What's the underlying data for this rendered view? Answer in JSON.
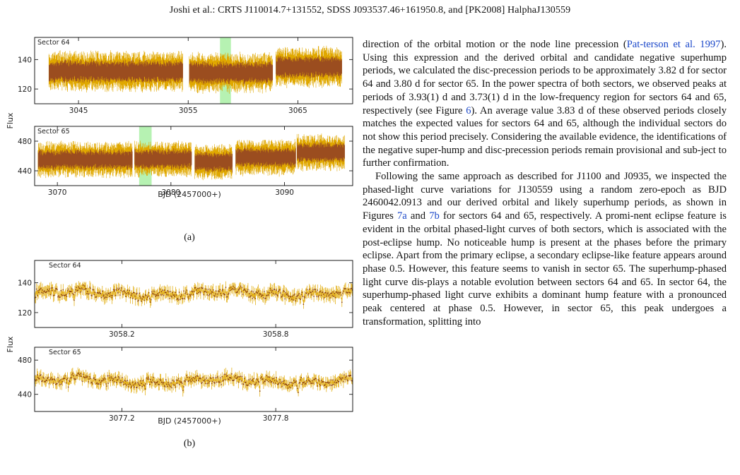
{
  "header": {
    "running_title": "Joshi et al.: CRTS J110014.7+131552, SDSS J093537.46+161950.8, and [PK2008] HalphaJ130559"
  },
  "figure_a": {
    "caption": "(a)",
    "ylabel": "Flux",
    "xlabel": "BJD (2457000+)",
    "colors": {
      "points": "#9b4d1f",
      "errorbars": "#e0a800",
      "highlight": "#b6f2b2"
    },
    "panels": [
      {
        "label": "Sector 64",
        "xlim": [
          3041,
          3070
        ],
        "ylim": [
          110,
          155
        ],
        "xticks": [
          "3045",
          "3055",
          "3065"
        ],
        "xtick_values": [
          3045,
          3055,
          3065
        ],
        "yticks": [
          "120",
          "140"
        ],
        "ytick_values": [
          120,
          140
        ],
        "segments": [
          [
            3042.3,
            3054.5
          ],
          [
            3055.1,
            3062.7
          ],
          [
            3063.0,
            3069.0
          ]
        ],
        "segment_levels": [
          132,
          131,
          135
        ],
        "highlight": [
          3057.9,
          3058.9
        ]
      },
      {
        "label": "Sector 65",
        "xlim": [
          3068,
          3096
        ],
        "ylim": [
          420,
          500
        ],
        "xticks": [
          "3070",
          "3080",
          "3090"
        ],
        "xtick_values": [
          3070,
          3080,
          3090
        ],
        "yticks": [
          "440",
          "480"
        ],
        "ytick_values": [
          440,
          480
        ],
        "segments": [
          [
            3068.3,
            3076.6
          ],
          [
            3076.8,
            3081.8
          ],
          [
            3082.1,
            3085.4
          ],
          [
            3085.7,
            3091.0
          ],
          [
            3091.1,
            3095.3
          ]
        ],
        "segment_levels": [
          455,
          456,
          452,
          458,
          465
        ],
        "highlight": [
          3077.2,
          3078.3
        ]
      }
    ]
  },
  "figure_b": {
    "caption": "(b)",
    "ylabel": "Flux",
    "xlabel": "BJD (2457000+)",
    "colors": {
      "points": "#8a3f12",
      "errorbars": "#e0a800"
    },
    "panels": [
      {
        "label": "Sector 64",
        "xlim": [
          3057.86,
          3059.1
        ],
        "ylim": [
          110,
          155
        ],
        "xticks": [
          "3058.2",
          "3058.8"
        ],
        "xtick_values": [
          3058.2,
          3058.8
        ],
        "yticks": [
          "120",
          "140"
        ],
        "ytick_values": [
          120,
          140
        ],
        "level": 133
      },
      {
        "label": "Sector 65",
        "xlim": [
          3076.86,
          3078.1
        ],
        "ylim": [
          420,
          495
        ],
        "xticks": [
          "3077.2",
          "3077.8"
        ],
        "xtick_values": [
          3077.2,
          3077.8
        ],
        "yticks": [
          "440",
          "480"
        ],
        "ytick_values": [
          440,
          480
        ],
        "level": 456
      }
    ]
  },
  "body": {
    "paragraph1": {
      "p1": "direction of the orbital motion or the node line precession (",
      "ref1": "Pat-terson et al. 1997",
      "p2": "). Using this expression and the derived orbital and candidate negative superhump periods, we calculated the disc-precession periods to be approximately 3.82 d for sector 64 and 3.80 d for sector 65. In the power spectra of both sectors, we observed peaks at periods of 3.93(1) d and 3.73(1) d in the low-frequency region for sectors 64 and 65, respectively (see Figure ",
      "ref2": "6",
      "p3": "). An average value 3.83 d of these observed periods closely matches the expected values for sectors 64 and 65, although the individual sectors do not show this period precisely. Considering the available evidence, the identifications of the negative super-hump and disc-precession periods remain provisional and sub-ject to further confirmation."
    },
    "paragraph2": {
      "p1": "Following the same approach as described for J1100 and J0935, we inspected the phased-light curve variations for J130559 using a random zero-epoch as BJD 2460042.0913 and our derived orbital and likely superhump periods, as shown in Figures ",
      "ref1": "7a",
      "p2": " and ",
      "ref2": "7b",
      "p3": " for sectors 64 and 65, respectively. A promi-nent eclipse feature is evident in the orbital phased-light curves of both sectors, which is associated with the post-eclipse hump. No noticeable hump is present at the phases before the primary eclipse. Apart from the primary eclipse, a secondary eclipse-like feature appears around phase 0.5. However, this feature seems to vanish in sector 65. The superhump-phased light curve dis-plays a notable evolution between sectors 64 and 65. In sector 64, the superhump-phased light curve exhibits a dominant hump feature with a pronounced peak centered at phase 0.5. However, in sector 65,  this peak undergoes a transformation, splitting into"
    }
  }
}
